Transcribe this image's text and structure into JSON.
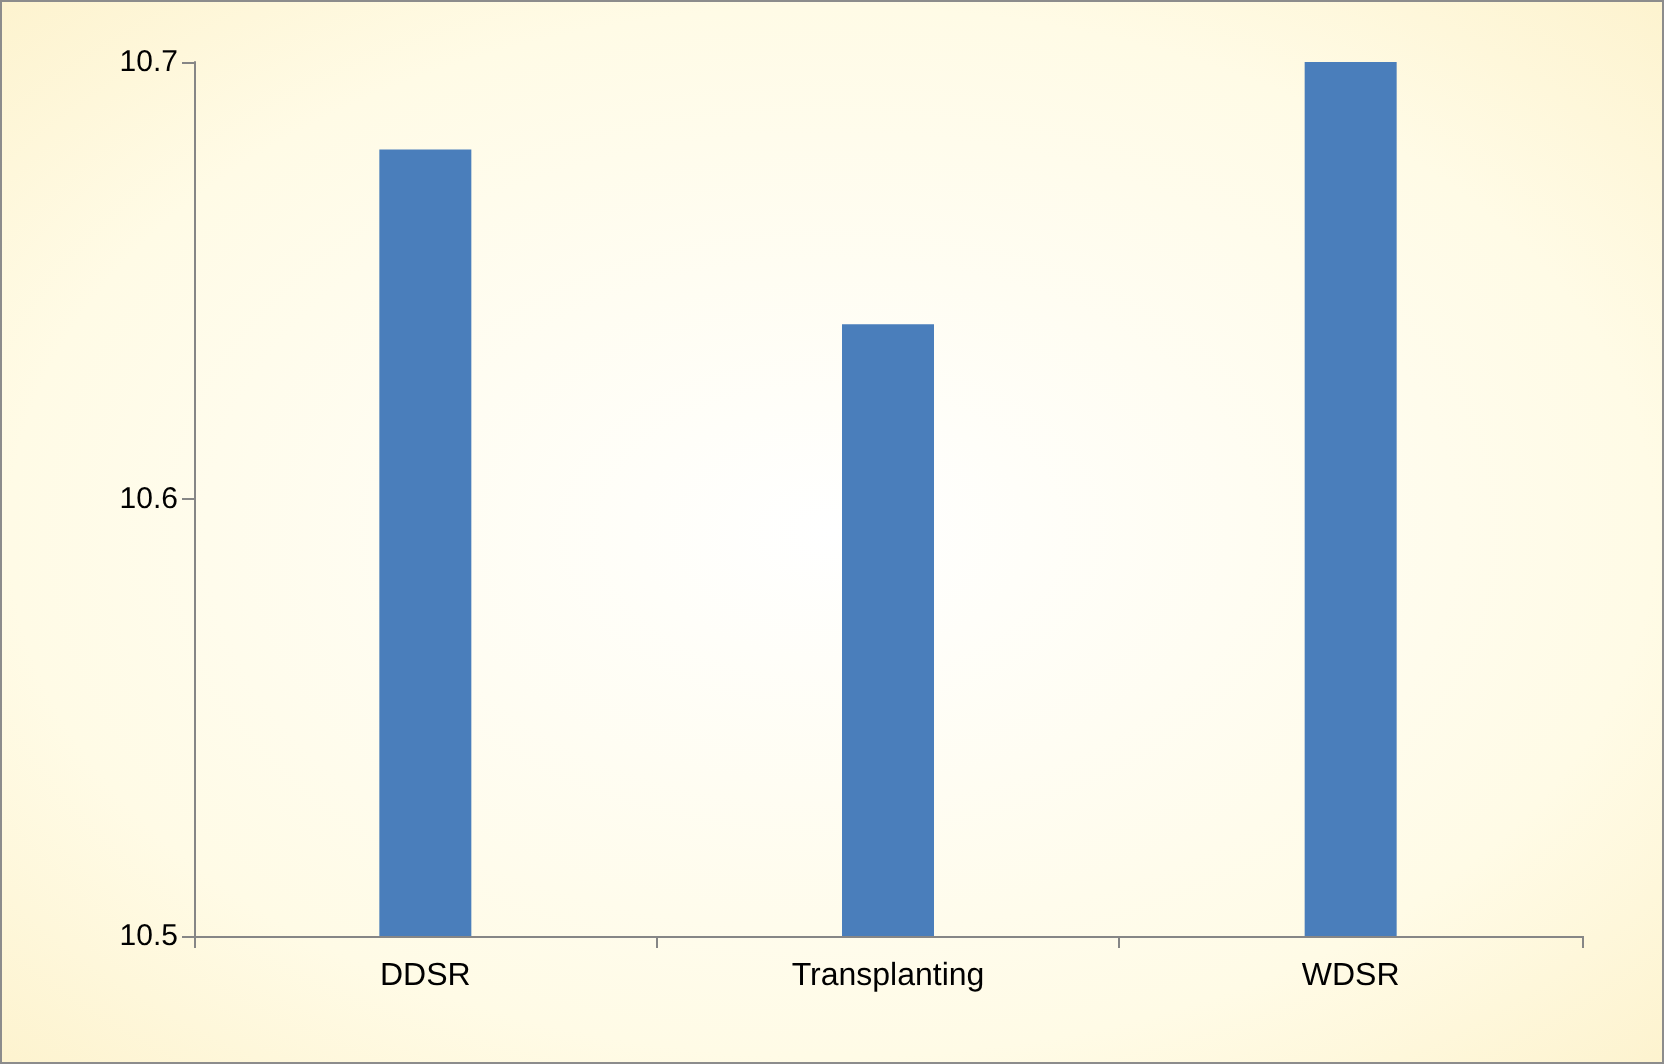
{
  "chart_data": {
    "type": "bar",
    "categories": [
      "DDSR",
      "Transplanting",
      "WDSR"
    ],
    "values": [
      10.68,
      10.64,
      10.7
    ],
    "color": "#4a7ebb",
    "ylim": [
      10.5,
      10.7
    ],
    "yticks": [
      10.5,
      10.6,
      10.7
    ],
    "grid": false
  }
}
